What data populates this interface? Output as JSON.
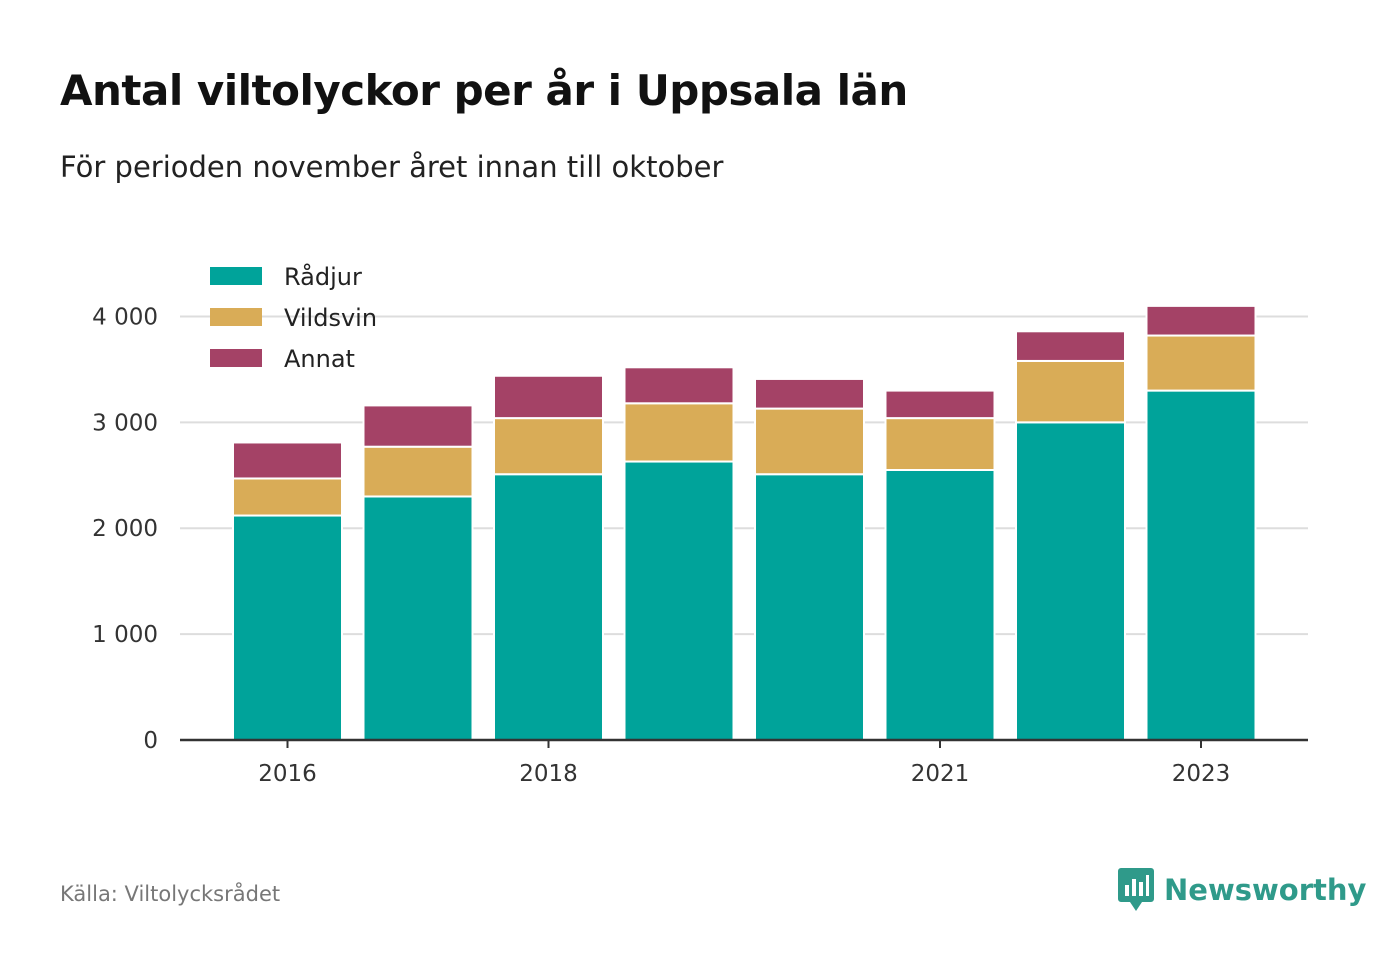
{
  "header": {
    "title": "Antal viltolyckor per år i Uppsala län",
    "subtitle": "För perioden november året innan till oktober"
  },
  "footer": {
    "source": "Källa: Viltolycksrådet",
    "brand": "Newsworthy"
  },
  "colors": {
    "radjur": "#00a39a",
    "vildsvin": "#d9ac57",
    "annat": "#a44266",
    "grid": "#dddddd",
    "axis": "#333333",
    "brand": "#2f9a8a"
  },
  "chart_data": {
    "type": "bar",
    "stacked": true,
    "categories": [
      "2016",
      "2017",
      "2018",
      "2019",
      "2020",
      "2021",
      "2022",
      "2023"
    ],
    "x_tick_labels": [
      "2016",
      "2018",
      "2021",
      "2023"
    ],
    "series": [
      {
        "name": "Rådjur",
        "color": "#00a39a",
        "values": [
          2120,
          2300,
          2510,
          2630,
          2510,
          2550,
          3000,
          3300
        ]
      },
      {
        "name": "Vildsvin",
        "color": "#d9ac57",
        "values": [
          350,
          470,
          530,
          550,
          620,
          490,
          580,
          520
        ]
      },
      {
        "name": "Annat",
        "color": "#a44266",
        "values": [
          340,
          390,
          400,
          340,
          280,
          260,
          280,
          280
        ]
      }
    ],
    "y_ticks": [
      0,
      1000,
      2000,
      3000,
      4000
    ],
    "y_tick_labels": [
      "0",
      "1 000",
      "2 000",
      "3 000",
      "4 000"
    ],
    "ylim": [
      0,
      4250
    ],
    "xlabel": "",
    "ylabel": "",
    "grid": true,
    "legend_position": "top-left"
  }
}
